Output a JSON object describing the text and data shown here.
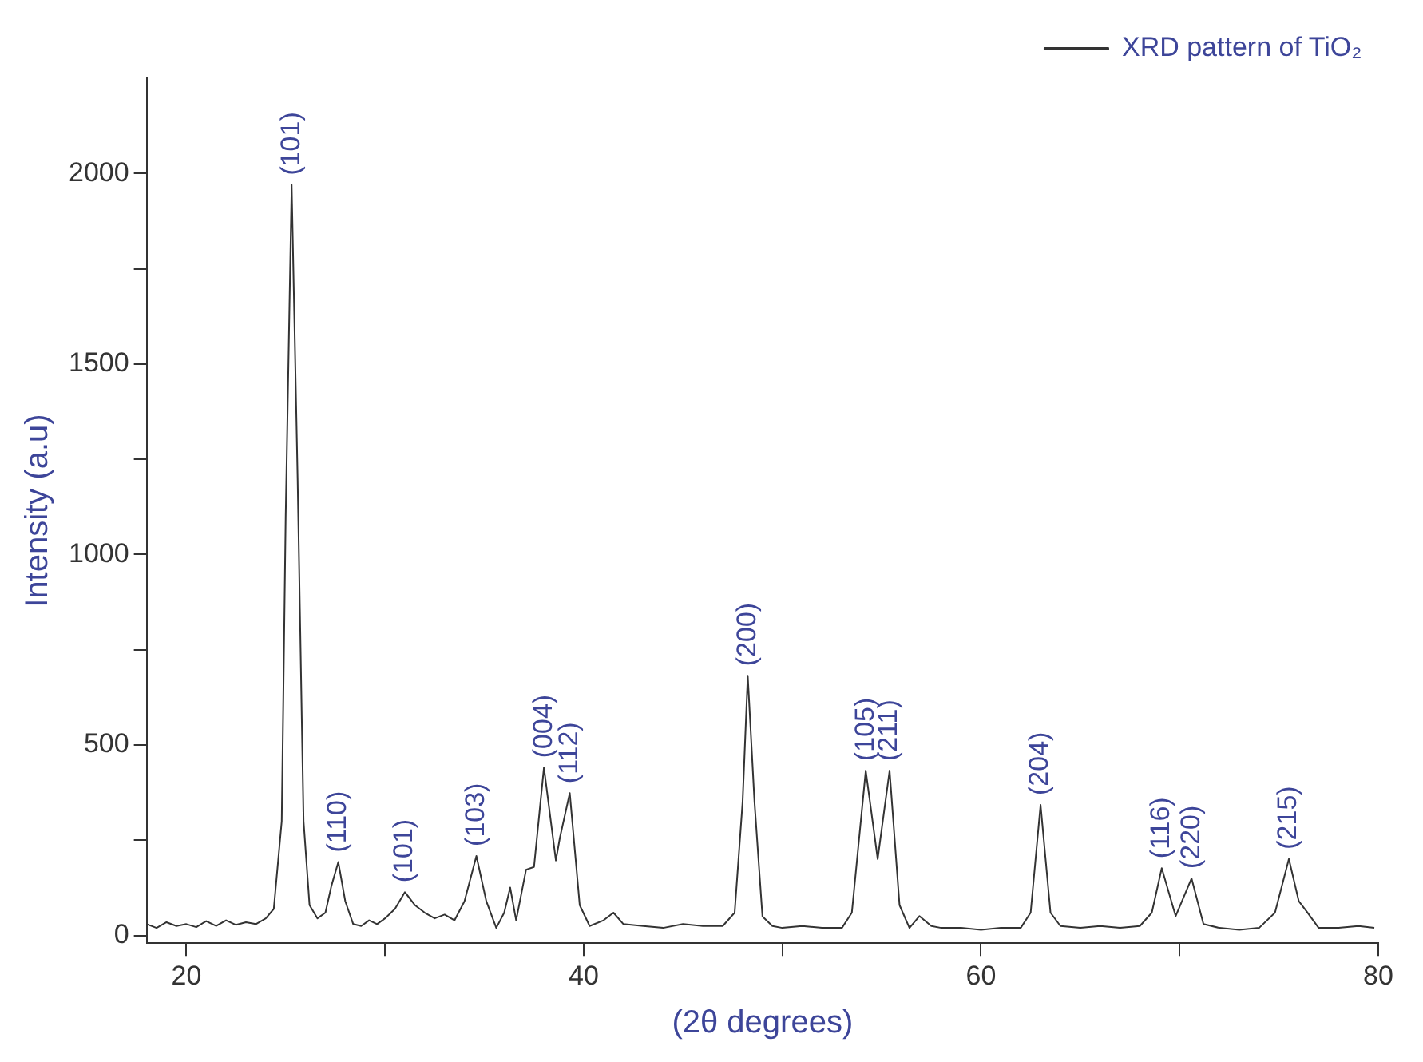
{
  "chart_data": {
    "type": "line",
    "xlabel": "(2θ degrees)",
    "ylabel": "Intensity (a.u)",
    "xlim": [
      18,
      80
    ],
    "xticks": [
      20,
      {
        "value": 30,
        "label": null
      },
      40,
      {
        "value": 50,
        "label": null
      },
      60,
      {
        "value": 70,
        "label": null
      },
      80
    ],
    "ylim": [
      -20,
      2250
    ],
    "yticks": [
      0,
      {
        "value": 250,
        "label": null
      },
      500,
      {
        "value": 750,
        "label": null
      },
      1000,
      {
        "value": 1250,
        "label": null
      },
      1500,
      {
        "value": 1750,
        "label": null
      },
      2000
    ],
    "grid": false,
    "legend": "top right",
    "marker": "none",
    "line_style": "solid",
    "series": [
      {
        "name": "XRD pattern of TiO₂",
        "color": "#333333",
        "x": [
          18,
          18.5,
          19,
          19.5,
          20,
          20.5,
          21,
          21.5,
          22,
          22.5,
          23,
          23.5,
          24,
          24.4,
          24.8,
          25.0,
          25.3,
          25.6,
          25.9,
          26.2,
          26.6,
          27.0,
          27.3,
          27.65,
          28.0,
          28.4,
          28.8,
          29.2,
          29.6,
          30.0,
          30.5,
          31.0,
          31.5,
          32.0,
          32.5,
          33.0,
          33.5,
          34.0,
          34.6,
          35.1,
          35.6,
          36.0,
          36.3,
          36.6,
          37.1,
          37.5,
          38.0,
          38.6,
          38.8,
          39.3,
          39.8,
          40.3,
          41.0,
          41.5,
          42.0,
          43,
          44,
          45,
          46,
          47,
          47.6,
          48.0,
          48.26,
          48.6,
          49.0,
          49.5,
          50,
          51,
          52,
          53,
          53.5,
          54.2,
          54.8,
          55.4,
          55.9,
          56.4,
          56.9,
          57.5,
          58,
          59,
          60,
          61,
          62,
          62.5,
          63.0,
          63.5,
          64.0,
          65,
          66,
          67,
          68,
          68.6,
          69.1,
          69.8,
          70.6,
          71.2,
          72,
          73,
          74,
          74.8,
          75.5,
          76.0,
          76.4,
          77,
          78,
          79,
          79.8
        ],
        "values": [
          30,
          20,
          35,
          25,
          30,
          22,
          38,
          25,
          40,
          28,
          35,
          30,
          45,
          70,
          300,
          1100,
          1970,
          1200,
          300,
          80,
          45,
          60,
          130,
          193,
          90,
          30,
          25,
          40,
          30,
          45,
          70,
          114,
          80,
          60,
          45,
          55,
          40,
          90,
          209,
          90,
          20,
          60,
          126,
          40,
          173,
          180,
          441,
          197,
          256,
          374,
          80,
          25,
          40,
          60,
          30,
          25,
          20,
          30,
          25,
          25,
          60,
          350,
          682,
          350,
          50,
          25,
          20,
          25,
          20,
          20,
          60,
          433,
          201,
          433,
          80,
          20,
          51,
          25,
          20,
          20,
          15,
          20,
          20,
          60,
          343,
          60,
          25,
          20,
          25,
          20,
          25,
          60,
          177,
          51,
          150,
          30,
          20,
          15,
          20,
          60,
          201,
          90,
          63,
          20,
          20,
          25,
          20
        ]
      }
    ],
    "annotations": [
      {
        "text": "(101)",
        "x": 25.3,
        "y": 1970
      },
      {
        "text": "(110)",
        "x": 27.65,
        "y": 193
      },
      {
        "text": "(101)",
        "x": 31.0,
        "y": 114
      },
      {
        "text": "(103)",
        "x": 34.6,
        "y": 209
      },
      {
        "text": "(004)",
        "x": 38.0,
        "y": 441
      },
      {
        "text": "(112)",
        "x": 39.3,
        "y": 374
      },
      {
        "text": "(200)",
        "x": 48.26,
        "y": 682
      },
      {
        "text": "(105)",
        "x": 54.2,
        "y": 433
      },
      {
        "text": "(211)",
        "x": 55.4,
        "y": 433
      },
      {
        "text": "(204)",
        "x": 63.0,
        "y": 343
      },
      {
        "text": "(116)",
        "x": 69.1,
        "y": 177
      },
      {
        "text": "(220)",
        "x": 70.6,
        "y": 150
      },
      {
        "text": "(215)",
        "x": 75.5,
        "y": 201
      }
    ]
  }
}
